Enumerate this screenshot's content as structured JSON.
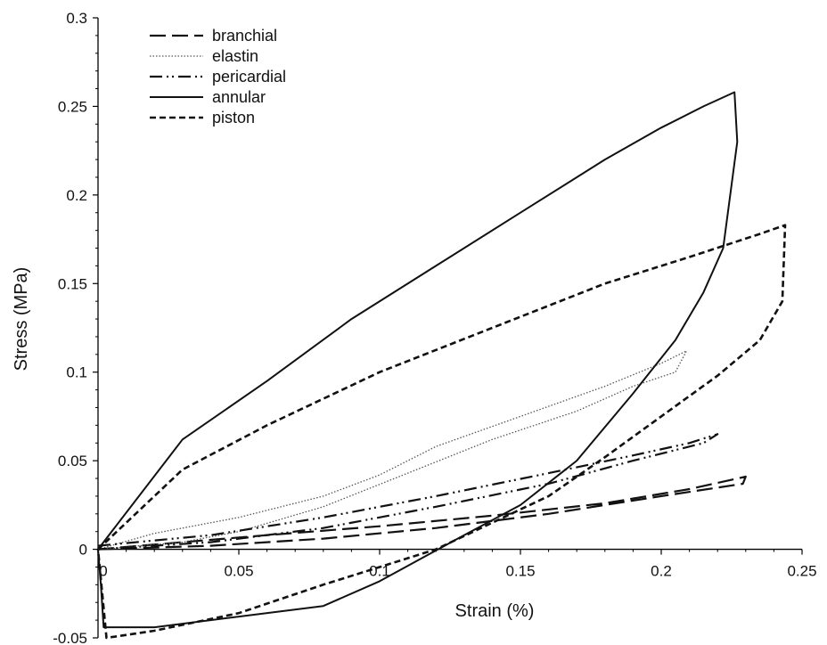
{
  "chart_data": {
    "type": "line",
    "title": "",
    "xlabel": "Strain (%)",
    "ylabel": "Stress (MPa)",
    "xlim": [
      0,
      0.25
    ],
    "ylim": [
      -0.05,
      0.3
    ],
    "x_ticks": [
      "0",
      "0.05",
      "0.1",
      "0.15",
      "0.2",
      "0.25"
    ],
    "y_ticks": [
      "-0.05",
      "0",
      "0.05",
      "0.1",
      "0.15",
      "0.2",
      "0.25",
      "0.3"
    ],
    "legend_position": "top-left",
    "grid": false,
    "series": [
      {
        "name": "branchial",
        "style": "long-dash",
        "x": [
          0.0,
          0.03,
          0.06,
          0.1,
          0.14,
          0.18,
          0.21,
          0.23,
          0.229,
          0.2,
          0.16,
          0.12,
          0.08,
          0.04,
          0.0
        ],
        "y": [
          0.0,
          0.004,
          0.008,
          0.013,
          0.019,
          0.026,
          0.034,
          0.041,
          0.037,
          0.03,
          0.02,
          0.012,
          0.006,
          0.002,
          0.0
        ]
      },
      {
        "name": "elastin",
        "style": "dotted",
        "x": [
          0.0,
          0.02,
          0.05,
          0.08,
          0.1,
          0.12,
          0.15,
          0.18,
          0.2,
          0.209,
          0.205,
          0.19,
          0.17,
          0.14,
          0.11,
          0.08,
          0.05,
          0.03,
          0.0
        ],
        "y": [
          0.0,
          0.009,
          0.018,
          0.03,
          0.042,
          0.058,
          0.075,
          0.092,
          0.105,
          0.112,
          0.1,
          0.092,
          0.078,
          0.062,
          0.043,
          0.024,
          0.01,
          0.004,
          0.0
        ]
      },
      {
        "name": "pericardial",
        "style": "dash-dot-dot",
        "x": [
          0.0,
          0.04,
          0.08,
          0.12,
          0.16,
          0.19,
          0.21,
          0.22,
          0.215,
          0.19,
          0.16,
          0.12,
          0.08,
          0.04,
          0.0
        ],
        "y": [
          0.002,
          0.008,
          0.018,
          0.03,
          0.043,
          0.053,
          0.06,
          0.065,
          0.06,
          0.05,
          0.037,
          0.024,
          0.012,
          0.004,
          0.0
        ]
      },
      {
        "name": "annular",
        "style": "solid",
        "x": [
          0.0,
          0.03,
          0.06,
          0.09,
          0.12,
          0.15,
          0.18,
          0.2,
          0.215,
          0.226,
          0.227,
          0.222,
          0.215,
          0.205,
          0.19,
          0.17,
          0.15,
          0.13,
          0.115,
          0.1,
          0.08,
          0.05,
          0.02,
          0.002,
          0.001,
          0.0
        ],
        "y": [
          0.0,
          0.062,
          0.095,
          0.13,
          0.16,
          0.19,
          0.22,
          0.238,
          0.25,
          0.258,
          0.23,
          0.17,
          0.145,
          0.118,
          0.088,
          0.05,
          0.025,
          0.008,
          -0.005,
          -0.018,
          -0.032,
          -0.038,
          -0.044,
          -0.044,
          -0.02,
          0.0
        ]
      },
      {
        "name": "piston",
        "style": "short-dash",
        "x": [
          0.0,
          0.03,
          0.06,
          0.1,
          0.14,
          0.18,
          0.21,
          0.235,
          0.244,
          0.243,
          0.235,
          0.22,
          0.2,
          0.18,
          0.16,
          0.14,
          0.12,
          0.1,
          0.08,
          0.05,
          0.02,
          0.003,
          0.0
        ],
        "y": [
          0.0,
          0.045,
          0.07,
          0.1,
          0.125,
          0.15,
          0.165,
          0.178,
          0.183,
          0.14,
          0.118,
          0.098,
          0.075,
          0.052,
          0.03,
          0.015,
          0.0,
          -0.01,
          -0.02,
          -0.036,
          -0.046,
          -0.05,
          0.0
        ]
      }
    ]
  }
}
